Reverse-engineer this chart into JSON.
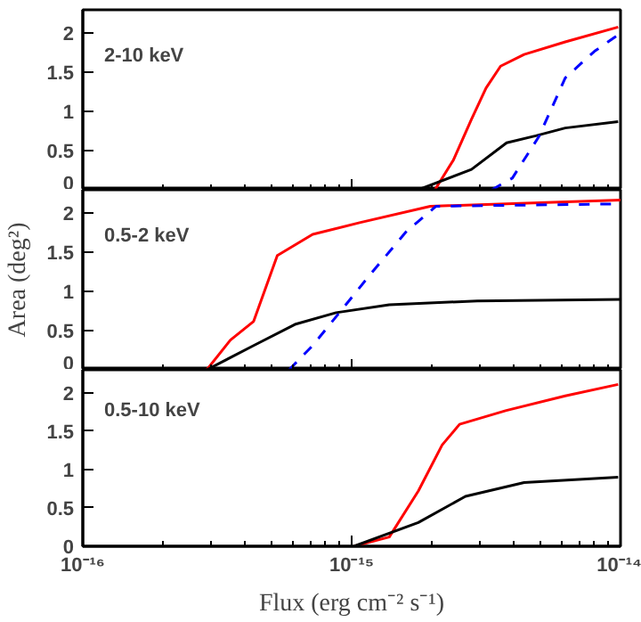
{
  "chart_data": [
    {
      "type": "line",
      "annotations": [
        "2-10 keV"
      ],
      "xlim": [
        1e-16,
        1e-14
      ],
      "ylim": [
        0,
        2.3
      ],
      "log": "x",
      "grid": false,
      "tick_labels": "y",
      "xticks": [
        {
          "value": 1e-16,
          "label": null
        },
        {
          "value": 2e-16,
          "label": null
        },
        {
          "value": 3e-16,
          "label": null
        },
        {
          "value": 4e-16,
          "label": null
        },
        {
          "value": 5e-16,
          "label": null
        },
        {
          "value": 6e-16,
          "label": null
        },
        {
          "value": 7e-16,
          "label": null
        },
        {
          "value": 8e-16,
          "label": null
        },
        {
          "value": 9e-16,
          "label": null
        },
        {
          "value": 1e-15,
          "label": null
        },
        {
          "value": 2e-15,
          "label": null
        },
        {
          "value": 3e-15,
          "label": null
        },
        {
          "value": 4e-15,
          "label": null
        },
        {
          "value": 5e-15,
          "label": null
        },
        {
          "value": 6e-15,
          "label": null
        },
        {
          "value": 7e-15,
          "label": null
        },
        {
          "value": 8e-15,
          "label": null
        },
        {
          "value": 9e-15,
          "label": null
        },
        {
          "value": 1e-14,
          "label": null
        }
      ],
      "yticks": [
        0,
        0.5,
        1,
        1.5,
        2
      ],
      "series": [
        {
          "color": "#ff0000",
          "line_style": "solid",
          "x": [
            2.04e-15,
            2.39e-15,
            2.79e-15,
            3.16e-15,
            3.58e-15,
            4.38e-15,
            6.23e-15,
            9.8e-15
          ],
          "values": [
            0,
            0.38,
            0.9,
            1.3,
            1.58,
            1.73,
            1.89,
            2.08
          ]
        },
        {
          "color": "#000000",
          "line_style": "solid",
          "x": [
            1.77e-15,
            2.79e-15,
            3.77e-15,
            4.84e-15,
            6.23e-15,
            9.8e-15
          ],
          "values": [
            0,
            0.26,
            0.6,
            0.69,
            0.79,
            0.87
          ]
        },
        {
          "color": "#0000ff",
          "line_style": "dashed",
          "x": [
            3.32e-15,
            3.96e-15,
            4.97e-15,
            6.23e-15,
            8e-15,
            9.8e-15
          ],
          "values": [
            0,
            0.15,
            0.68,
            1.43,
            1.77,
            1.98
          ]
        }
      ]
    },
    {
      "type": "line",
      "annotations": [
        "0.5-2 keV"
      ],
      "ylabel": "Area (deg²)",
      "xlim": [
        1e-16,
        1e-14
      ],
      "ylim": [
        0,
        2.3
      ],
      "log": "x",
      "grid": false,
      "tick_labels": "y",
      "xticks": [
        {
          "value": 1e-16,
          "label": null
        },
        {
          "value": 2e-16,
          "label": null
        },
        {
          "value": 3e-16,
          "label": null
        },
        {
          "value": 4e-16,
          "label": null
        },
        {
          "value": 5e-16,
          "label": null
        },
        {
          "value": 6e-16,
          "label": null
        },
        {
          "value": 7e-16,
          "label": null
        },
        {
          "value": 8e-16,
          "label": null
        },
        {
          "value": 9e-16,
          "label": null
        },
        {
          "value": 1e-15,
          "label": null
        },
        {
          "value": 2e-15,
          "label": null
        },
        {
          "value": 3e-15,
          "label": null
        },
        {
          "value": 4e-15,
          "label": null
        },
        {
          "value": 5e-15,
          "label": null
        },
        {
          "value": 6e-15,
          "label": null
        },
        {
          "value": 7e-15,
          "label": null
        },
        {
          "value": 8e-15,
          "label": null
        },
        {
          "value": 9e-15,
          "label": null
        },
        {
          "value": 1e-14,
          "label": null
        }
      ],
      "yticks": [
        0,
        0.5,
        1,
        1.5,
        2
      ],
      "series": [
        {
          "color": "#ff0000",
          "line_style": "solid",
          "x": [
            2.89e-16,
            3.54e-16,
            4.32e-16,
            5.29e-16,
            7.16e-16,
            1.07e-15,
            1.96e-15,
            1e-14
          ],
          "values": [
            0,
            0.38,
            0.62,
            1.46,
            1.73,
            1.88,
            2.09,
            2.17
          ]
        },
        {
          "color": "#000000",
          "line_style": "solid",
          "x": [
            2.89e-16,
            4.32e-16,
            6.15e-16,
            8.75e-16,
            1.38e-15,
            2.93e-15,
            1e-14
          ],
          "values": [
            0,
            0.31,
            0.58,
            0.73,
            0.83,
            0.88,
            0.9
          ]
        },
        {
          "color": "#0000ff",
          "line_style": "dashed",
          "x": [
            5.85e-16,
            7.16e-16,
            9.2e-16,
            1.18e-15,
            1.6e-15,
            2.06e-15,
            1e-14
          ],
          "values": [
            0,
            0.31,
            0.77,
            1.23,
            1.77,
            2.09,
            2.12
          ]
        }
      ]
    },
    {
      "type": "line",
      "annotations": [
        "0.5-10 keV"
      ],
      "xlabel": "Flux (erg cm⁻² s⁻¹)",
      "xlim": [
        1e-16,
        1e-14
      ],
      "ylim": [
        0,
        2.3
      ],
      "log": "x",
      "grid": false,
      "xticks": [
        {
          "value": 1e-16,
          "label": "10⁻¹⁶"
        },
        {
          "value": 2e-16,
          "label": null
        },
        {
          "value": 3e-16,
          "label": null
        },
        {
          "value": 4e-16,
          "label": null
        },
        {
          "value": 5e-16,
          "label": null
        },
        {
          "value": 6e-16,
          "label": null
        },
        {
          "value": 7e-16,
          "label": null
        },
        {
          "value": 8e-16,
          "label": null
        },
        {
          "value": 9e-16,
          "label": null
        },
        {
          "value": 1e-15,
          "label": "10⁻¹⁵"
        },
        {
          "value": 2e-15,
          "label": null
        },
        {
          "value": 3e-15,
          "label": null
        },
        {
          "value": 4e-15,
          "label": null
        },
        {
          "value": 5e-15,
          "label": null
        },
        {
          "value": 6e-15,
          "label": null
        },
        {
          "value": 7e-15,
          "label": null
        },
        {
          "value": 8e-15,
          "label": null
        },
        {
          "value": 9e-15,
          "label": null
        },
        {
          "value": 1e-14,
          "label": "10⁻¹⁴"
        }
      ],
      "yticks": [
        0,
        0.5,
        1,
        1.5,
        2
      ],
      "series": [
        {
          "color": "#ff0000",
          "line_style": "solid",
          "x": [
            1.02e-15,
            1.38e-15,
            1.77e-15,
            2.17e-15,
            2.52e-15,
            3.76e-15,
            6.23e-15,
            9.8e-15
          ],
          "values": [
            0,
            0.12,
            0.72,
            1.32,
            1.59,
            1.77,
            1.96,
            2.11
          ]
        },
        {
          "color": "#000000",
          "line_style": "solid",
          "x": [
            1.02e-15,
            1.77e-15,
            2.65e-15,
            4.38e-15,
            9.8e-15
          ],
          "values": [
            0,
            0.31,
            0.65,
            0.83,
            0.9
          ]
        }
      ]
    }
  ]
}
